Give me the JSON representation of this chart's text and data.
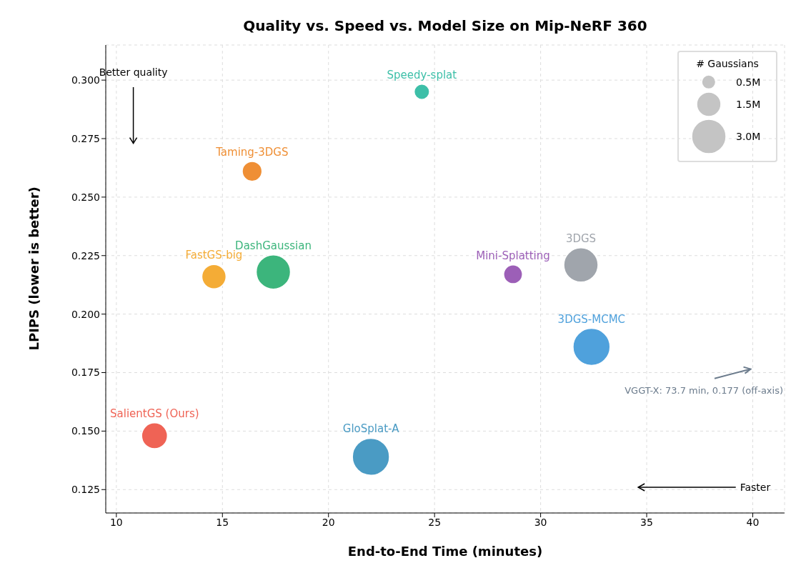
{
  "chart_data": {
    "type": "bubble",
    "title": "Quality vs. Speed vs. Model Size on Mip-NeRF 360",
    "xlabel": "End-to-End Time (minutes)",
    "ylabel": "LPIPS (lower is better)",
    "legend_title": "# Gaussians",
    "xlim": [
      9.5,
      41.5
    ],
    "ylim": [
      0.115,
      0.315
    ],
    "xticks": [
      10,
      15,
      20,
      25,
      30,
      35,
      40
    ],
    "yticks": [
      {
        "value": 0.125,
        "label": "0.125"
      },
      {
        "value": 0.15,
        "label": "0.150"
      },
      {
        "value": 0.175,
        "label": "0.175"
      },
      {
        "value": 0.2,
        "label": "0.200"
      },
      {
        "value": 0.225,
        "label": "0.225"
      },
      {
        "value": 0.25,
        "label": "0.250"
      },
      {
        "value": 0.275,
        "label": "0.275"
      },
      {
        "value": 0.3,
        "label": "0.300"
      }
    ],
    "grid": true,
    "marker": "circle",
    "size_legend": [
      {
        "value": 0.5,
        "label": "0.5M"
      },
      {
        "value": 1.5,
        "label": "1.5M"
      },
      {
        "value": 3.0,
        "label": "3.0M"
      }
    ],
    "series": [
      {
        "name": "Speedy-splat",
        "color": "#3dbfa8",
        "x": [
          24.4
        ],
        "values": [
          0.295
        ],
        "sizes": [
          0.6
        ]
      },
      {
        "name": "Taming-3DGS",
        "color": "#ef8f35",
        "x": [
          16.4
        ],
        "values": [
          0.261
        ],
        "sizes": [
          1.0
        ]
      },
      {
        "name": "DashGaussian",
        "color": "#3cb57c",
        "x": [
          17.4
        ],
        "values": [
          0.218
        ],
        "sizes": [
          3.0
        ]
      },
      {
        "name": "FastGS-big",
        "color": "#f4ac36",
        "x": [
          14.6
        ],
        "values": [
          0.216
        ],
        "sizes": [
          1.5
        ]
      },
      {
        "name": "Mini-Splatting",
        "color": "#9c5fb7",
        "x": [
          28.7
        ],
        "values": [
          0.217
        ],
        "sizes": [
          0.9
        ]
      },
      {
        "name": "3DGS",
        "color": "#a0a5ac",
        "x": [
          31.9
        ],
        "values": [
          0.221
        ],
        "sizes": [
          3.0
        ]
      },
      {
        "name": "3DGS-MCMC",
        "color": "#4fa1dc",
        "x": [
          32.4
        ],
        "values": [
          0.186
        ],
        "sizes": [
          3.5
        ]
      },
      {
        "name": "SalientGS (Ours)",
        "color": "#ef6355",
        "x": [
          11.8
        ],
        "values": [
          0.148
        ],
        "sizes": [
          1.7
        ]
      },
      {
        "name": "GloSplat-A",
        "color": "#4a9bc4",
        "x": [
          22.0
        ],
        "values": [
          0.139
        ],
        "sizes": [
          3.5
        ]
      }
    ],
    "annotations": [
      "Better quality",
      "Faster",
      "VGGT-X: 73.7 min, 0.177 (off-axis)"
    ]
  }
}
